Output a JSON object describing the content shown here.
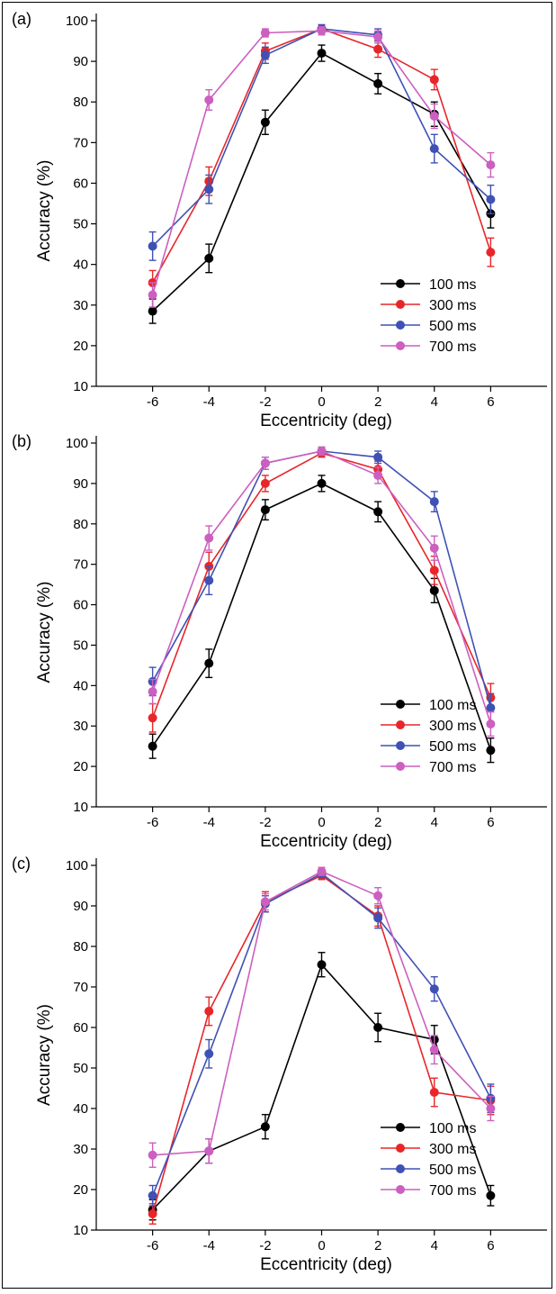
{
  "chart_data": [
    {
      "type": "line",
      "panel_label": "(a)",
      "title": "",
      "xlabel": "Eccentricity (deg)",
      "ylabel": "Accuracy (%)",
      "x": [
        -6,
        -4,
        -2,
        0,
        2,
        4,
        6
      ],
      "xlim": [
        -8,
        8
      ],
      "ylim": [
        10,
        100
      ],
      "xticks": [
        -6,
        -4,
        -2,
        0,
        2,
        4,
        6
      ],
      "yticks": [
        10,
        20,
        30,
        40,
        50,
        60,
        70,
        80,
        90,
        100
      ],
      "grid": false,
      "legend_position": "bottom-right",
      "series": [
        {
          "name": "100 ms",
          "color": "#000000",
          "values": [
            28.5,
            41.5,
            75,
            92,
            84.5,
            77,
            52.5
          ],
          "errors": [
            3,
            3.5,
            3,
            2,
            2.5,
            3,
            3.5
          ]
        },
        {
          "name": "300 ms",
          "color": "#e8262a",
          "values": [
            35.5,
            60.5,
            92.5,
            98,
            93,
            85.5,
            43
          ],
          "errors": [
            3,
            3.5,
            2,
            1,
            2,
            2.5,
            3.5
          ]
        },
        {
          "name": "500 ms",
          "color": "#3f51b5",
          "values": [
            44.5,
            58.5,
            91.5,
            98,
            96.5,
            68.5,
            56
          ],
          "errors": [
            3.5,
            3.5,
            2,
            1,
            1.5,
            3.5,
            3.5
          ]
        },
        {
          "name": "700 ms",
          "color": "#cc5fc0",
          "values": [
            32.5,
            80.5,
            97,
            97.5,
            96,
            76.5,
            64.5
          ],
          "errors": [
            3,
            2.5,
            1,
            1,
            1.5,
            3,
            3
          ]
        }
      ]
    },
    {
      "type": "line",
      "panel_label": "(b)",
      "title": "",
      "xlabel": "Eccentricity (deg)",
      "ylabel": "Accuracy (%)",
      "x": [
        -6,
        -4,
        -2,
        0,
        2,
        4,
        6
      ],
      "xlim": [
        -8,
        8
      ],
      "ylim": [
        10,
        100
      ],
      "xticks": [
        -6,
        -4,
        -2,
        0,
        2,
        4,
        6
      ],
      "yticks": [
        10,
        20,
        30,
        40,
        50,
        60,
        70,
        80,
        90,
        100
      ],
      "grid": false,
      "legend_position": "bottom-right",
      "series": [
        {
          "name": "100 ms",
          "color": "#000000",
          "values": [
            25,
            45.5,
            83.5,
            90,
            83,
            63.5,
            24
          ],
          "errors": [
            3,
            3.5,
            2.5,
            2,
            2.5,
            3,
            3
          ]
        },
        {
          "name": "300 ms",
          "color": "#e8262a",
          "values": [
            32,
            69.5,
            90,
            97.5,
            93.5,
            68.5,
            37
          ],
          "errors": [
            3.5,
            3.5,
            2,
            1,
            2,
            3.5,
            3.5
          ]
        },
        {
          "name": "500 ms",
          "color": "#3f51b5",
          "values": [
            41,
            66,
            95,
            98,
            96.5,
            85.5,
            34.5
          ],
          "errors": [
            3.5,
            3.5,
            1.5,
            1,
            1.5,
            2.5,
            3.5
          ]
        },
        {
          "name": "700 ms",
          "color": "#cc5fc0",
          "values": [
            38.5,
            76.5,
            95,
            98,
            92,
            74,
            30.5
          ],
          "errors": [
            3,
            3,
            1.5,
            1,
            2,
            3,
            3
          ]
        }
      ]
    },
    {
      "type": "line",
      "panel_label": "(c)",
      "title": "",
      "xlabel": "Eccentricity (deg)",
      "ylabel": "Accuracy (%)",
      "x": [
        -6,
        -4,
        -2,
        0,
        2,
        4,
        6
      ],
      "xlim": [
        -8,
        8
      ],
      "ylim": [
        10,
        100
      ],
      "xticks": [
        -6,
        -4,
        -2,
        0,
        2,
        4,
        6
      ],
      "yticks": [
        10,
        20,
        30,
        40,
        50,
        60,
        70,
        80,
        90,
        100
      ],
      "grid": false,
      "legend_position": "bottom-right",
      "series": [
        {
          "name": "100 ms",
          "color": "#000000",
          "values": [
            15,
            29.5,
            35.5,
            75.5,
            60,
            57,
            18.5
          ],
          "errors": [
            2.5,
            3,
            3,
            3,
            3.5,
            3.5,
            2.5
          ]
        },
        {
          "name": "300 ms",
          "color": "#e8262a",
          "values": [
            14,
            64,
            91,
            97.5,
            87.5,
            44,
            42
          ],
          "errors": [
            2.5,
            3.5,
            2.5,
            1,
            2.5,
            3.5,
            3.5
          ]
        },
        {
          "name": "500 ms",
          "color": "#3f51b5",
          "values": [
            18.5,
            53.5,
            90.5,
            98,
            87,
            69.5,
            42.5
          ],
          "errors": [
            2.5,
            3.5,
            2,
            1,
            2.5,
            3,
            3.5
          ]
        },
        {
          "name": "700 ms",
          "color": "#cc5fc0",
          "values": [
            28.5,
            29.5,
            91,
            98.5,
            92.5,
            54.5,
            40
          ],
          "errors": [
            3,
            3,
            2,
            1,
            2,
            3.5,
            3
          ]
        }
      ]
    }
  ]
}
